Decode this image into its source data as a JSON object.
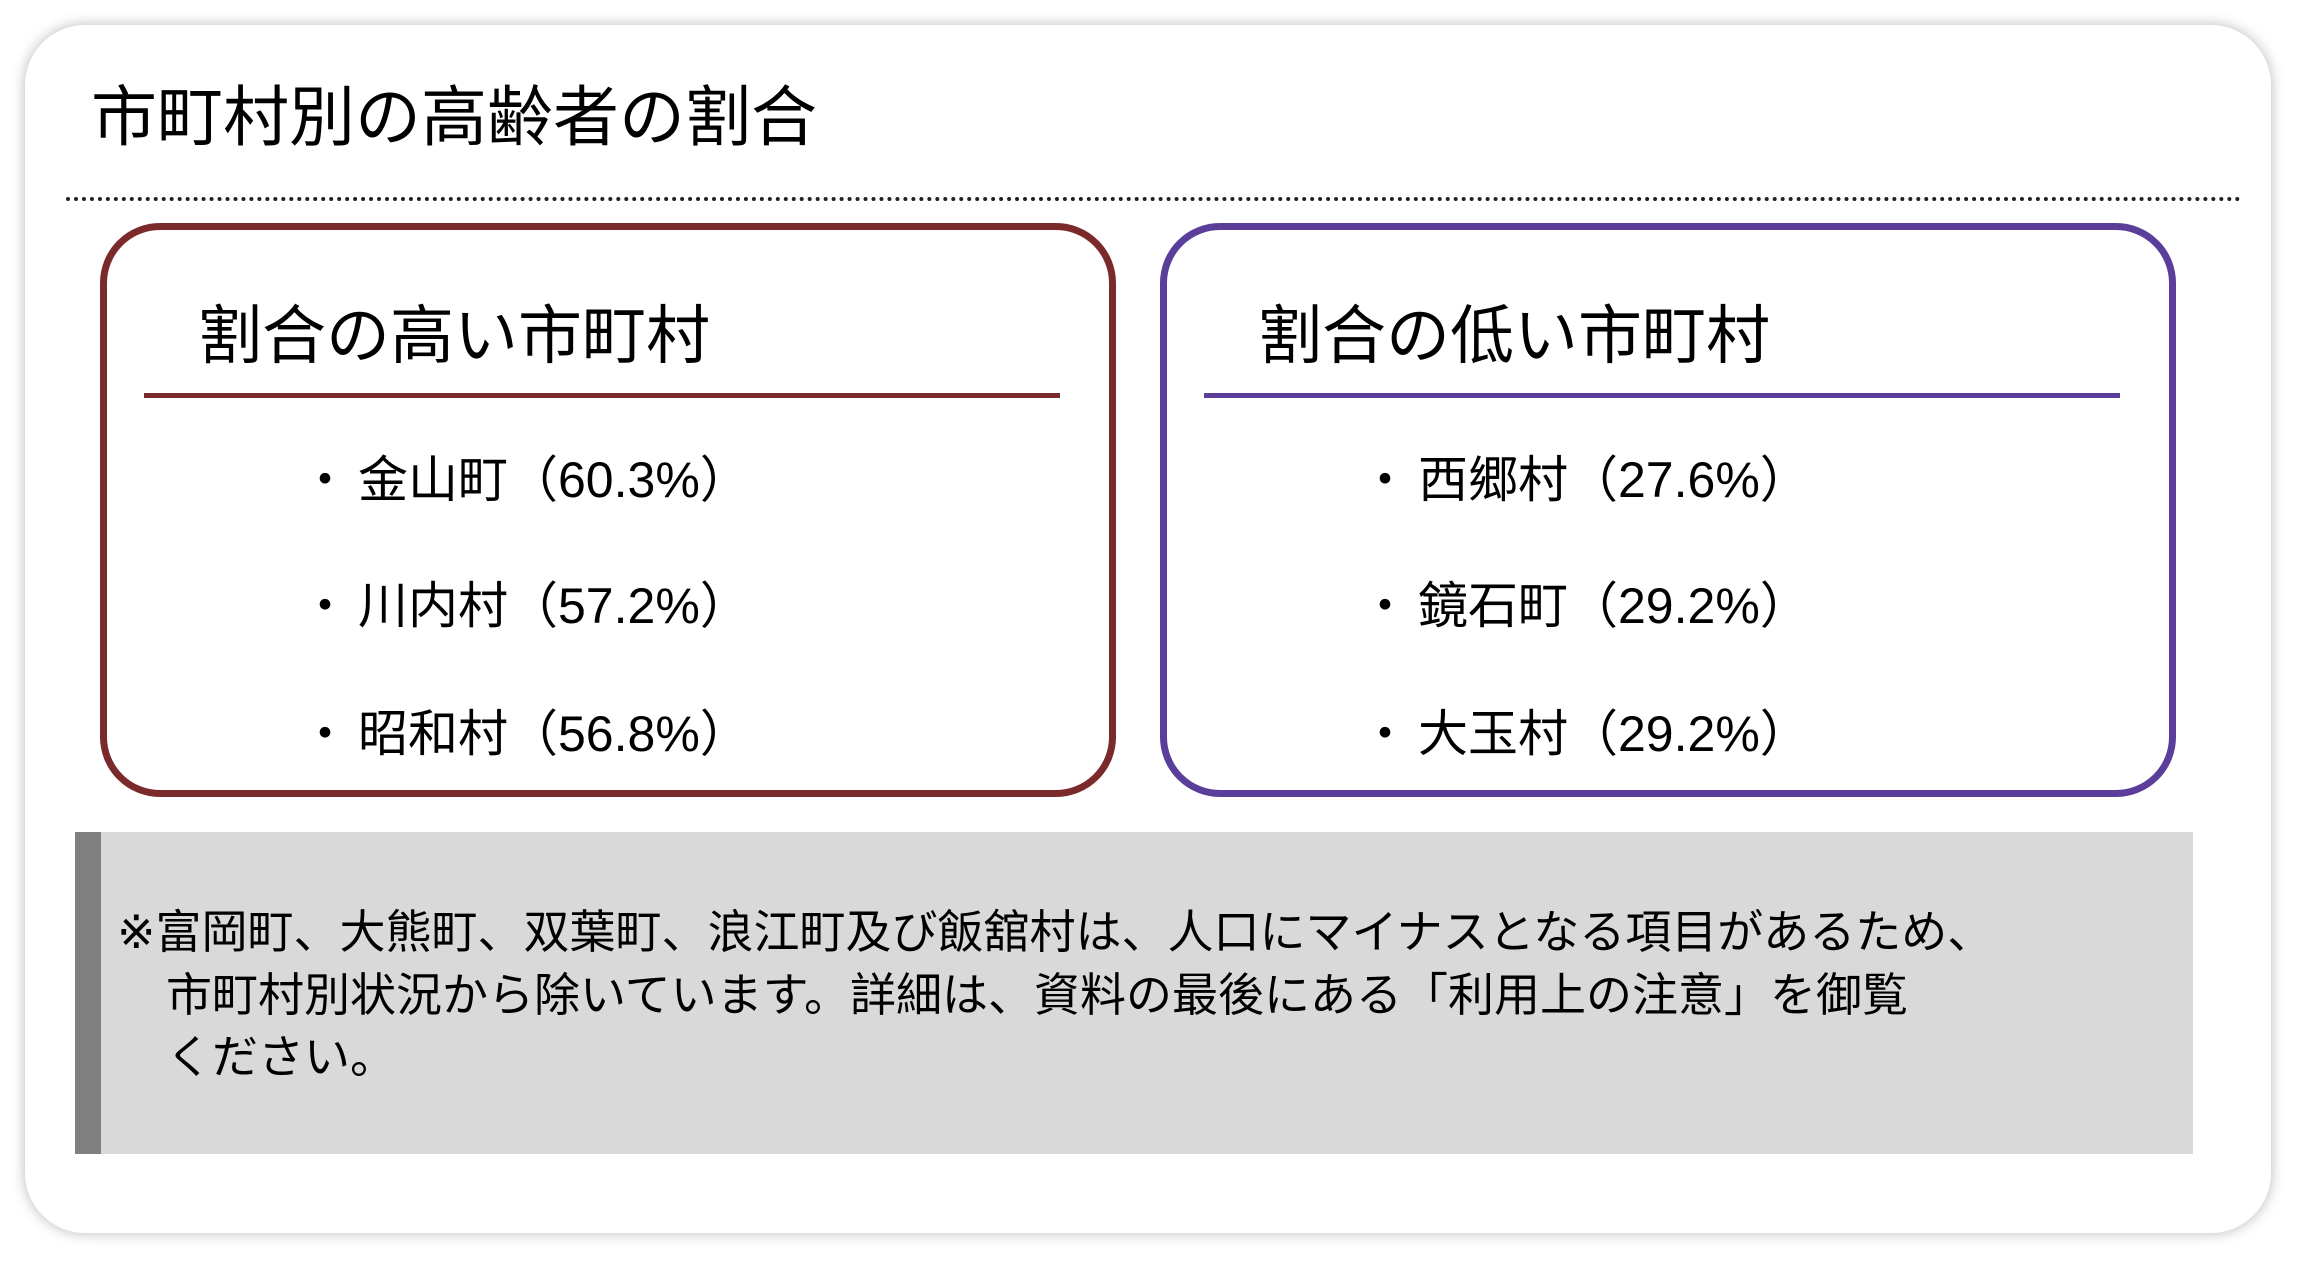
{
  "title": "市町村別の高齢者の割合",
  "high": {
    "heading": "割合の高い市町村",
    "accent_color": "#7a2a2a",
    "items": [
      {
        "bullet": "・",
        "name": "金山町",
        "value": "（60.3%）"
      },
      {
        "bullet": "・",
        "name": "川内村",
        "value": "（57.2%）"
      },
      {
        "bullet": "・",
        "name": "昭和村",
        "value": "（56.8%）"
      }
    ]
  },
  "low": {
    "heading": "割合の低い市町村",
    "accent_color": "#5a3e9a",
    "items": [
      {
        "bullet": "・",
        "name": "西郷村",
        "value": "（27.6%）"
      },
      {
        "bullet": "・",
        "name": "鏡石町",
        "value": "（29.2%）"
      },
      {
        "bullet": "・",
        "name": "大玉村",
        "value": "（29.2%）"
      }
    ]
  },
  "note": {
    "lines": [
      "※富岡町、大熊町、双葉町、浪江町及び飯舘村は、人口にマイナスとなる項目があるため、",
      "市町村別状況から除いています。詳細は、資料の最後にある「利用上の注意」を御覧",
      "ください。"
    ]
  }
}
